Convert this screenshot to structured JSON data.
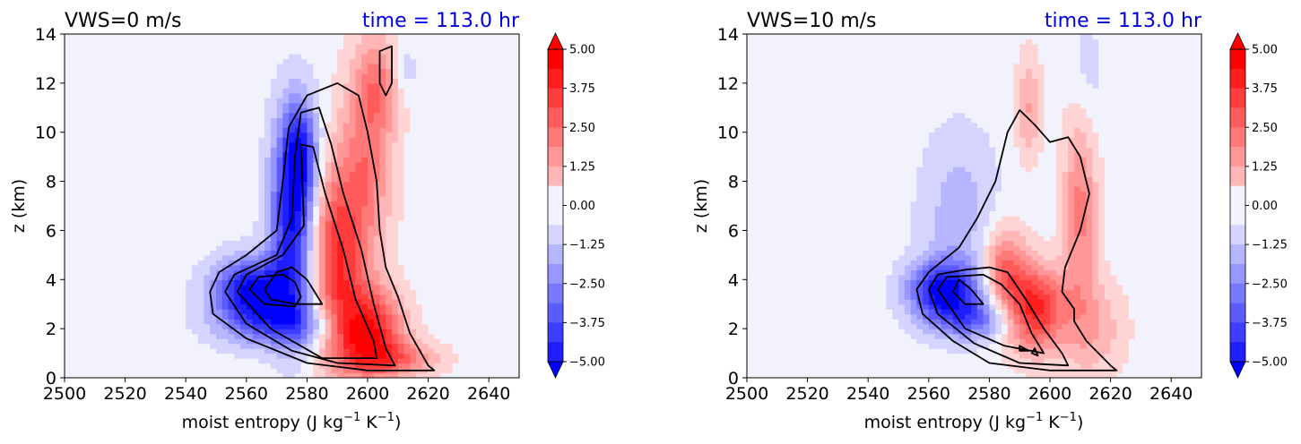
{
  "colors": {
    "background_field": "#f2f2fc",
    "positive": "#ff0000",
    "negative": "#0000ff",
    "contour": "#000000",
    "time_text": "#0000dd"
  },
  "chart_data": [
    {
      "type": "heatmap",
      "title_left": "VWS=0 m/s",
      "title_right": "time = 113.0 hr",
      "xlabel": "moist entropy (J kg",
      "xlabel_sup1": "−1",
      "xlabel_mid": " K",
      "xlabel_sup2": "−1",
      "xlabel_end": ")",
      "ylabel": "z (km)",
      "xlim": [
        2500,
        2650
      ],
      "ylim": [
        0,
        14
      ],
      "xticks": [
        "2500",
        "2520",
        "2540",
        "2560",
        "2580",
        "2600",
        "2620",
        "2640"
      ],
      "yticks": [
        "0",
        "2",
        "4",
        "6",
        "8",
        "10",
        "12",
        "14"
      ],
      "colorbar": {
        "min": -5.0,
        "max": 5.0,
        "extend": "both",
        "ticks": [
          "5.00",
          "3.75",
          "2.50",
          "1.25",
          "0.00",
          "−1.25",
          "−2.50",
          "−3.75",
          "−5.00"
        ]
      },
      "anomaly_blobs": [
        {
          "x": 2562,
          "y": 3.6,
          "sx": 9,
          "sy": 0.9,
          "v": -5.0
        },
        {
          "x": 2575,
          "y": 6.5,
          "sx": 5,
          "sy": 2.8,
          "v": -4.6
        },
        {
          "x": 2572,
          "y": 2.2,
          "sx": 14,
          "sy": 0.7,
          "v": -2.8
        },
        {
          "x": 2578,
          "y": 9.2,
          "sx": 4,
          "sy": 1.5,
          "v": -3.0
        },
        {
          "x": 2600,
          "y": 1.9,
          "sx": 8,
          "sy": 1.2,
          "v": 4.8
        },
        {
          "x": 2590,
          "y": 5.0,
          "sx": 6,
          "sy": 2.6,
          "v": 3.8
        },
        {
          "x": 2600,
          "y": 9.0,
          "sx": 6,
          "sy": 3.0,
          "v": 2.4
        },
        {
          "x": 2610,
          "y": 0.8,
          "sx": 10,
          "sy": 0.5,
          "v": 2.2
        },
        {
          "x": 2604,
          "y": 12.0,
          "sx": 5,
          "sy": 1.3,
          "v": 1.6
        },
        {
          "x": 2612,
          "y": 12.6,
          "sx": 3,
          "sy": 0.8,
          "v": -0.9
        }
      ],
      "contours": [
        [
          [
            2548,
            3.5
          ],
          [
            2551,
            4.3
          ],
          [
            2560,
            5.0
          ],
          [
            2570,
            6.0
          ],
          [
            2572,
            8.0
          ],
          [
            2574,
            10.2
          ],
          [
            2580,
            11.5
          ],
          [
            2590,
            12.0
          ],
          [
            2597,
            11.5
          ],
          [
            2600,
            10.0
          ],
          [
            2603,
            8.0
          ],
          [
            2604,
            6.0
          ],
          [
            2606,
            4.5
          ],
          [
            2610,
            3.3
          ],
          [
            2614,
            1.8
          ],
          [
            2620,
            0.5
          ],
          [
            2622,
            0.3
          ],
          [
            2600,
            0.3
          ],
          [
            2580,
            0.6
          ],
          [
            2560,
            1.6
          ],
          [
            2549,
            2.6
          ],
          [
            2548,
            3.5
          ]
        ],
        [
          [
            2553,
            3.5
          ],
          [
            2556,
            4.2
          ],
          [
            2570,
            5.0
          ],
          [
            2575,
            6.5
          ],
          [
            2576,
            9.0
          ],
          [
            2578,
            10.8
          ],
          [
            2584,
            11.0
          ],
          [
            2588,
            9.5
          ],
          [
            2592,
            7.5
          ],
          [
            2598,
            5.2
          ],
          [
            2602,
            3.0
          ],
          [
            2606,
            1.2
          ],
          [
            2609,
            0.5
          ],
          [
            2590,
            0.6
          ],
          [
            2575,
            1.1
          ],
          [
            2560,
            2.2
          ],
          [
            2553,
            3.5
          ]
        ],
        [
          [
            2557,
            3.5
          ],
          [
            2560,
            4.2
          ],
          [
            2572,
            5.0
          ],
          [
            2579,
            6.2
          ],
          [
            2578,
            9.5
          ],
          [
            2582,
            9.4
          ],
          [
            2586,
            7.5
          ],
          [
            2592,
            5.2
          ],
          [
            2596,
            3.2
          ],
          [
            2602,
            1.5
          ],
          [
            2603,
            0.8
          ],
          [
            2585,
            0.8
          ],
          [
            2568,
            2.0
          ],
          [
            2557,
            3.5
          ]
        ],
        [
          [
            2561,
            3.6
          ],
          [
            2564,
            4.1
          ],
          [
            2572,
            4.2
          ],
          [
            2576,
            3.9
          ],
          [
            2578,
            3.3
          ],
          [
            2576,
            2.9
          ],
          [
            2566,
            3.0
          ],
          [
            2561,
            3.6
          ]
        ],
        [
          [
            2566,
            3.6
          ],
          [
            2570,
            4.3
          ],
          [
            2575,
            4.5
          ],
          [
            2580,
            4.0
          ],
          [
            2585,
            3.0
          ],
          [
            2576,
            3.0
          ],
          [
            2568,
            3.2
          ],
          [
            2566,
            3.6
          ]
        ],
        [
          [
            2604,
            13.3
          ],
          [
            2604,
            12.0
          ],
          [
            2606,
            11.5
          ],
          [
            2608,
            12.0
          ],
          [
            2608,
            13.5
          ],
          [
            2604,
            13.3
          ]
        ]
      ]
    },
    {
      "type": "heatmap",
      "title_left": "VWS=10 m/s",
      "title_right": "time = 113.0 hr",
      "xlabel": "moist entropy (J kg",
      "xlabel_sup1": "−1",
      "xlabel_mid": " K",
      "xlabel_sup2": "−1",
      "xlabel_end": ")",
      "ylabel": "z (km)",
      "xlim": [
        2500,
        2650
      ],
      "ylim": [
        0,
        14
      ],
      "xticks": [
        "2500",
        "2520",
        "2540",
        "2560",
        "2580",
        "2600",
        "2620",
        "2640"
      ],
      "yticks": [
        "0",
        "2",
        "4",
        "6",
        "8",
        "10",
        "12",
        "14"
      ],
      "colorbar": {
        "min": -5.0,
        "max": 5.0,
        "extend": "both",
        "ticks": [
          "5.00",
          "3.75",
          "2.50",
          "1.25",
          "0.00",
          "−1.25",
          "−2.50",
          "−3.75",
          "−5.00"
        ]
      },
      "anomaly_blobs": [
        {
          "x": 2565,
          "y": 3.6,
          "sx": 8,
          "sy": 0.8,
          "v": -4.8
        },
        {
          "x": 2575,
          "y": 2.4,
          "sx": 10,
          "sy": 0.6,
          "v": -2.6
        },
        {
          "x": 2570,
          "y": 6.5,
          "sx": 9,
          "sy": 2.5,
          "v": -1.3
        },
        {
          "x": 2595,
          "y": 2.8,
          "sx": 7,
          "sy": 1.2,
          "v": 4.5
        },
        {
          "x": 2585,
          "y": 4.5,
          "sx": 5,
          "sy": 1.2,
          "v": 2.8
        },
        {
          "x": 2610,
          "y": 7.0,
          "sx": 4,
          "sy": 3.0,
          "v": 2.4
        },
        {
          "x": 2593,
          "y": 11.0,
          "sx": 3,
          "sy": 1.5,
          "v": 1.6
        },
        {
          "x": 2615,
          "y": 2.0,
          "sx": 7,
          "sy": 1.4,
          "v": 1.4
        },
        {
          "x": 2612,
          "y": 12.0,
          "sx": 4,
          "sy": 2.0,
          "v": -0.8
        }
      ],
      "contours": [
        [
          [
            2556,
            3.6
          ],
          [
            2560,
            4.3
          ],
          [
            2570,
            5.3
          ],
          [
            2576,
            6.5
          ],
          [
            2582,
            8.0
          ],
          [
            2586,
            10.0
          ],
          [
            2590,
            10.9
          ],
          [
            2595,
            10.3
          ],
          [
            2600,
            9.6
          ],
          [
            2606,
            9.8
          ],
          [
            2610,
            9.0
          ],
          [
            2613,
            7.5
          ],
          [
            2610,
            6.0
          ],
          [
            2605,
            4.5
          ],
          [
            2604,
            3.5
          ],
          [
            2608,
            2.8
          ],
          [
            2608,
            2.3
          ],
          [
            2612,
            1.5
          ],
          [
            2620,
            0.5
          ],
          [
            2622,
            0.3
          ],
          [
            2600,
            0.3
          ],
          [
            2580,
            0.6
          ],
          [
            2568,
            1.5
          ],
          [
            2558,
            2.6
          ],
          [
            2556,
            3.6
          ]
        ],
        [
          [
            2560,
            3.6
          ],
          [
            2563,
            4.2
          ],
          [
            2572,
            4.4
          ],
          [
            2580,
            4.5
          ],
          [
            2586,
            4.3
          ],
          [
            2592,
            3.2
          ],
          [
            2598,
            2.0
          ],
          [
            2604,
            1.0
          ],
          [
            2606,
            0.5
          ],
          [
            2590,
            0.6
          ],
          [
            2575,
            1.4
          ],
          [
            2563,
            2.6
          ],
          [
            2560,
            3.6
          ]
        ],
        [
          [
            2563,
            3.6
          ],
          [
            2566,
            4.1
          ],
          [
            2578,
            4.2
          ],
          [
            2584,
            3.8
          ],
          [
            2590,
            3.0
          ],
          [
            2594,
            1.8
          ],
          [
            2598,
            1.0
          ],
          [
            2585,
            1.3
          ],
          [
            2572,
            2.0
          ],
          [
            2563,
            3.6
          ]
        ],
        [
          [
            2568,
            3.5
          ],
          [
            2570,
            4.0
          ],
          [
            2574,
            3.6
          ],
          [
            2578,
            3.0
          ],
          [
            2572,
            3.0
          ],
          [
            2568,
            3.5
          ]
        ],
        [
          [
            2590,
            1.3
          ],
          [
            2593,
            1.1
          ],
          [
            2590,
            1.1
          ],
          [
            2590,
            1.3
          ]
        ],
        [
          [
            2594,
            1.0
          ],
          [
            2596,
            0.9
          ],
          [
            2595,
            1.2
          ],
          [
            2594,
            1.0
          ]
        ]
      ]
    }
  ]
}
